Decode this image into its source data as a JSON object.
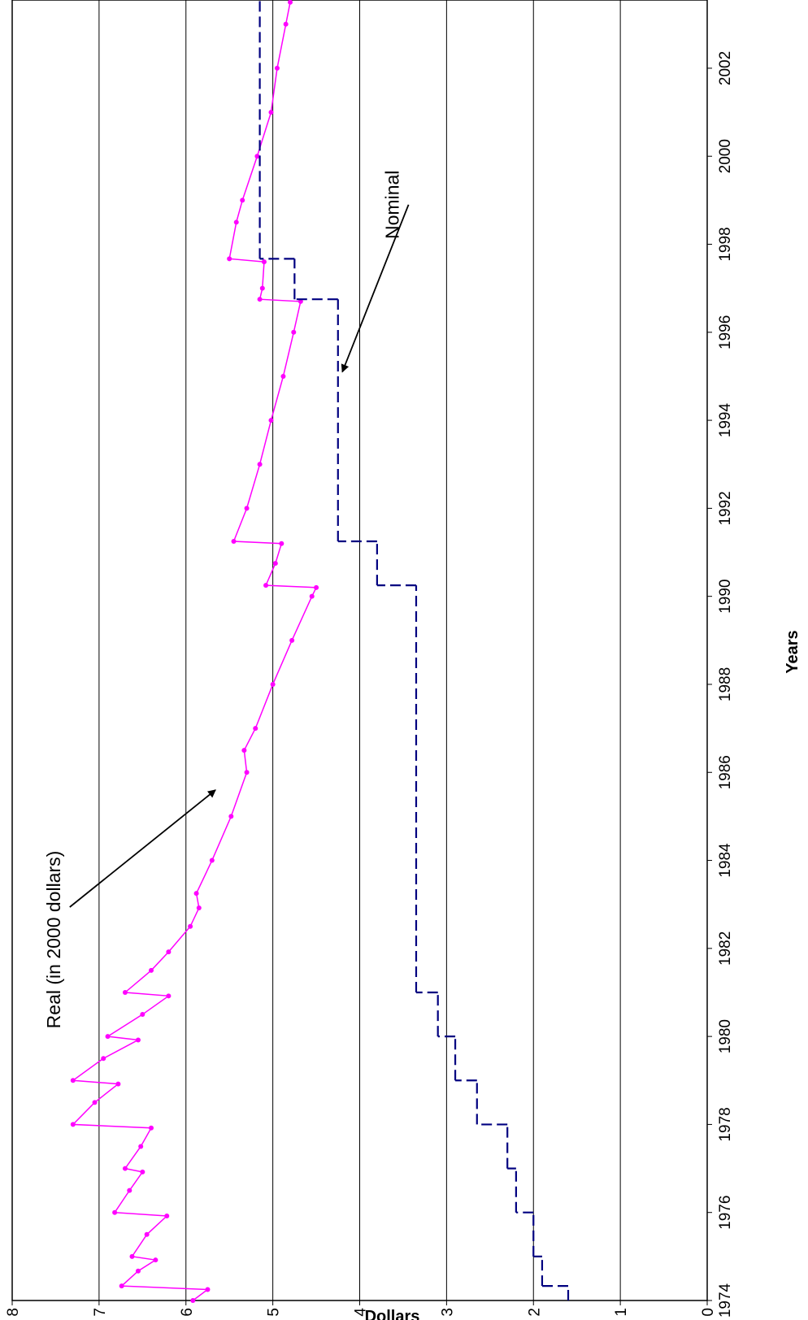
{
  "chart_data": {
    "type": "line",
    "xlabel": "Years",
    "ylabel": "Dollars",
    "xlim": [
      1974,
      2003.55
    ],
    "xticks": [
      1974,
      1976,
      1978,
      1980,
      1982,
      1984,
      1986,
      1988,
      1990,
      1992,
      1994,
      1996,
      1998,
      2000,
      2002
    ],
    "ylim": [
      0,
      8
    ],
    "yticks": [
      0,
      1,
      2,
      3,
      4,
      5,
      6,
      7,
      8
    ],
    "grid": true,
    "rotation": -90,
    "annotations": [
      {
        "text": "Real (in 2000 dollars)",
        "x": 1982.2,
        "y": 7.45,
        "arrow_x": 1985.6,
        "arrow_y": 5.66
      },
      {
        "text": "Nominal",
        "x": 1998.9,
        "y": 3.55,
        "arrow_x": 1995.1,
        "arrow_y": 4.2
      }
    ],
    "series": [
      {
        "name": "Real (in 2000 dollars)",
        "color": "#ff00ff",
        "style": "solid",
        "markers": true,
        "x": [
          1974.0,
          1974.25,
          1974.33,
          1974.67,
          1974.92,
          1975.0,
          1975.5,
          1975.92,
          1976.0,
          1976.5,
          1976.92,
          1977.0,
          1977.5,
          1977.92,
          1978.0,
          1978.5,
          1978.92,
          1979.0,
          1979.5,
          1979.92,
          1980.0,
          1980.5,
          1980.92,
          1981.0,
          1981.5,
          1981.92,
          1982.5,
          1982.92,
          1983.25,
          1984.0,
          1985.0,
          1986.0,
          1986.5,
          1987.0,
          1988.0,
          1989.0,
          1990.0,
          1990.2,
          1990.25,
          1990.75,
          1991.2,
          1991.25,
          1992.0,
          1993.0,
          1994.0,
          1995.0,
          1996.0,
          1996.7,
          1996.75,
          1997.0,
          1997.6,
          1997.67,
          1998.5,
          1999.0,
          2000.0,
          2001.0,
          2002.0,
          2003.0,
          2003.5
        ],
        "values": [
          5.92,
          5.75,
          6.74,
          6.55,
          6.35,
          6.62,
          6.45,
          6.22,
          6.82,
          6.65,
          6.5,
          6.7,
          6.52,
          6.4,
          7.3,
          7.05,
          6.78,
          7.3,
          6.95,
          6.55,
          6.9,
          6.5,
          6.2,
          6.7,
          6.4,
          6.2,
          5.95,
          5.85,
          5.88,
          5.7,
          5.48,
          5.3,
          5.33,
          5.2,
          5.0,
          4.78,
          4.55,
          4.5,
          5.08,
          4.97,
          4.9,
          5.45,
          5.3,
          5.15,
          5.02,
          4.88,
          4.76,
          4.68,
          5.15,
          5.12,
          5.1,
          5.5,
          5.42,
          5.35,
          5.18,
          5.02,
          4.95,
          4.85,
          4.8
        ]
      },
      {
        "name": "Nominal",
        "color": "#000080",
        "style": "dashed",
        "step": "post",
        "x": [
          1974.0,
          1974.33,
          1975.0,
          1976.0,
          1977.0,
          1978.0,
          1979.0,
          1980.0,
          1981.0,
          1990.25,
          1991.25,
          1996.75,
          1997.67
        ],
        "values": [
          1.6,
          1.9,
          2.0,
          2.2,
          2.3,
          2.65,
          2.9,
          3.1,
          3.35,
          3.8,
          4.25,
          4.75,
          5.15
        ]
      }
    ]
  }
}
